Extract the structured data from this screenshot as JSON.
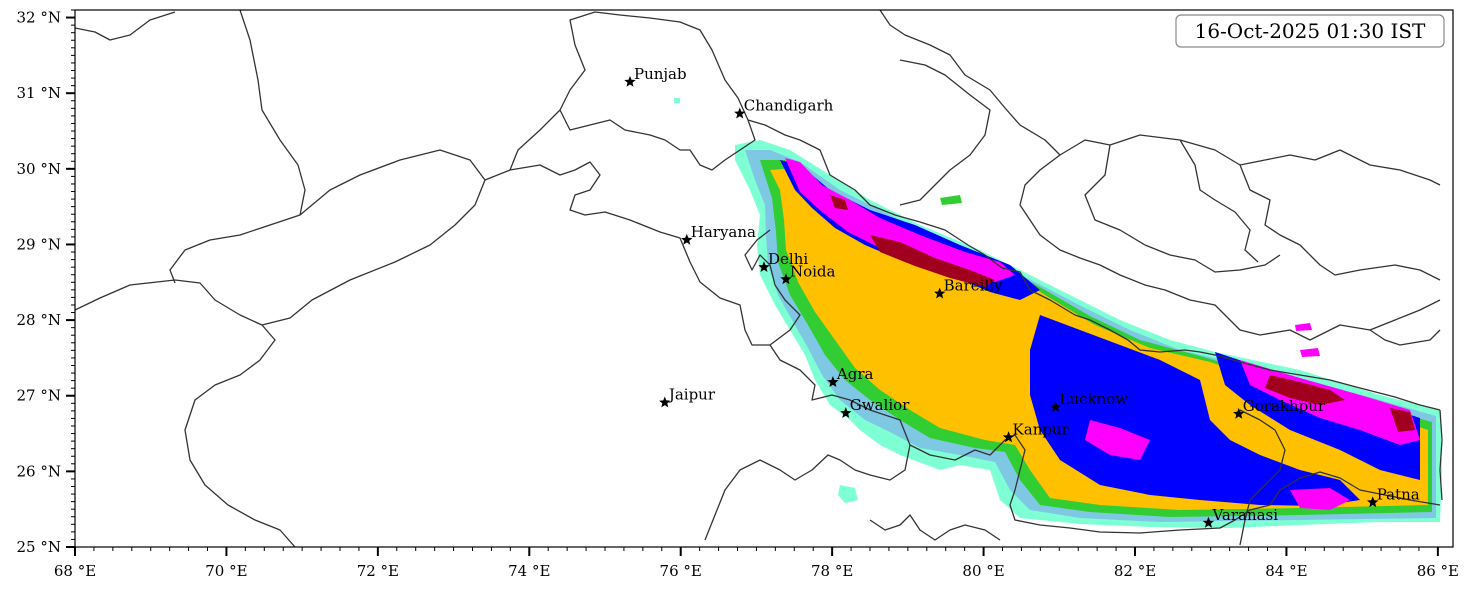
{
  "timestamp": "16-Oct-2025 01:30 IST",
  "lon_ticks": [
    "68 °E",
    "70 °E",
    "72 °E",
    "74 °E",
    "76 °E",
    "78 °E",
    "80 °E",
    "82 °E",
    "84 °E",
    "86 °E"
  ],
  "lat_ticks": [
    "25 °N",
    "26 °N",
    "27 °N",
    "28 °N",
    "29 °N",
    "30 °N",
    "31 °N",
    "32 °N"
  ],
  "map_extent": {
    "lon_min": 68,
    "lon_max": 86.2,
    "lat_min": 25,
    "lat_max": 32.1
  },
  "colors": {
    "level1": "#7fffd4",
    "level2": "#7ec8e3",
    "level3": "#32cd32",
    "level4": "#ffc000",
    "level5": "#0000ff",
    "level6": "#ff00ff",
    "level7": "#a0001e",
    "border": "#333333",
    "marker": "#000000"
  },
  "cities": [
    {
      "name": "Punjab",
      "lon": 75.33,
      "lat": 31.15
    },
    {
      "name": "Chandigarh",
      "lon": 76.78,
      "lat": 30.73
    },
    {
      "name": "Haryana",
      "lon": 76.08,
      "lat": 29.06
    },
    {
      "name": "Delhi",
      "lon": 77.1,
      "lat": 28.7
    },
    {
      "name": "Noida",
      "lon": 77.39,
      "lat": 28.54
    },
    {
      "name": "Bareilly",
      "lon": 79.42,
      "lat": 28.35
    },
    {
      "name": "Agra",
      "lon": 78.01,
      "lat": 27.18
    },
    {
      "name": "Jaipur",
      "lon": 75.79,
      "lat": 26.91
    },
    {
      "name": "Gwalior",
      "lon": 78.18,
      "lat": 26.77
    },
    {
      "name": "Lucknow",
      "lon": 80.95,
      "lat": 26.85
    },
    {
      "name": "Gorakhpur",
      "lon": 83.37,
      "lat": 26.76
    },
    {
      "name": "Kanpur",
      "lon": 80.33,
      "lat": 26.45
    },
    {
      "name": "Varanasi",
      "lon": 82.97,
      "lat": 25.32
    },
    {
      "name": "Patna",
      "lon": 85.14,
      "lat": 25.59
    }
  ]
}
